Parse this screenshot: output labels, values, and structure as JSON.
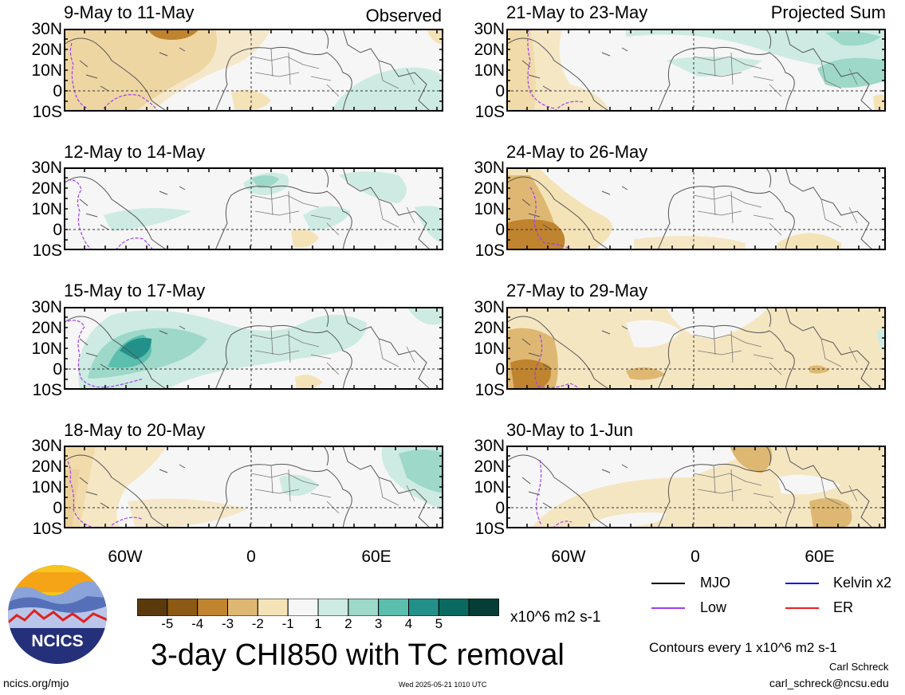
{
  "header": {
    "observed_label": "Observed",
    "projected_label": "Projected Sum"
  },
  "panels_left": [
    {
      "title": "9-May to 11-May"
    },
    {
      "title": "12-May to 14-May"
    },
    {
      "title": "15-May to 17-May"
    },
    {
      "title": "18-May to 20-May"
    }
  ],
  "panels_right": [
    {
      "title": "21-May to 23-May"
    },
    {
      "title": "24-May to 26-May"
    },
    {
      "title": "27-May to 29-May"
    },
    {
      "title": "30-May to 1-Jun"
    }
  ],
  "lat_labels": [
    "30N",
    "20N",
    "10N",
    "0",
    "10S"
  ],
  "lon_labels": [
    "60W",
    "0",
    "60E"
  ],
  "legend": {
    "mjo": "MJO",
    "kelvin": "Kelvin x2",
    "low": "Low",
    "er": "ER",
    "colors": {
      "mjo": "#000000",
      "kelvin": "#1010ee",
      "low": "#a040f0",
      "er": "#ee2020"
    }
  },
  "colorbar": {
    "ticks": [
      "-5",
      "-4",
      "-3",
      "-2",
      "-1",
      "1",
      "2",
      "3",
      "4",
      "5"
    ],
    "units": "x10^6 m2 s-1",
    "colors": [
      "#5a3a0c",
      "#8c5a14",
      "#c0832e",
      "#deb872",
      "#f5e3b8",
      "#f6f6f6",
      "#cdebe2",
      "#9dd8c9",
      "#5cbfae",
      "#24908a",
      "#0a6a60",
      "#063d36"
    ]
  },
  "title": "3-day CHI850 with TC removal",
  "contours_note": "Contours every 1 x10^6 m2 s-1",
  "author": "Carl Schreck",
  "email": "carl_schreck@ncsu.edu",
  "site": "ncics.org/mjo",
  "timestamp": "Wed 2025-05-21 1010 UTC",
  "logo_text": "NCICS"
}
